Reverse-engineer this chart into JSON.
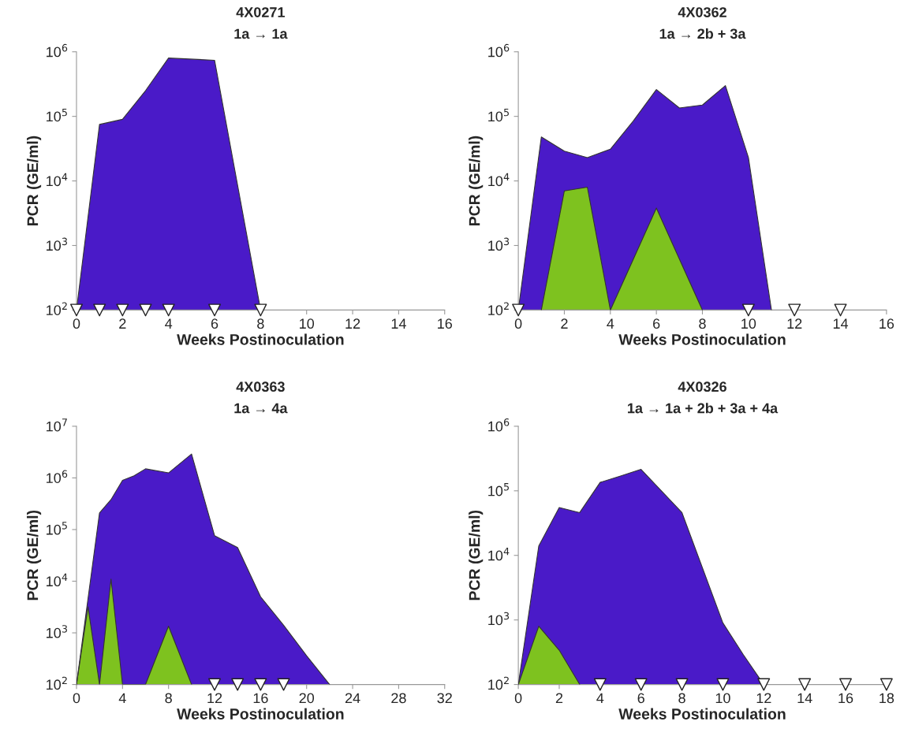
{
  "chart_data": [
    {
      "type": "area",
      "title": "4X0271",
      "subtitle": "1a → 1a",
      "xlabel": "Weeks Postinoculation",
      "ylabel": "PCR (GE/ml)",
      "log": "y",
      "xlim": [
        0,
        16
      ],
      "xticks": [
        0,
        2,
        4,
        6,
        8,
        10,
        12,
        14,
        16
      ],
      "ylim": [
        100,
        1000000
      ],
      "yticks": [
        {
          "value": 100,
          "label": "10$^{2}$"
        },
        {
          "value": 1000,
          "label": "10$^{3}$"
        },
        {
          "value": 10000,
          "label": "10$^{4}$"
        },
        {
          "value": 100000,
          "label": "10$^{5}$"
        },
        {
          "value": 1000000,
          "label": "10$^{6}$"
        }
      ],
      "series": [
        {
          "color": "#4a1ac8",
          "x": [
            0,
            1,
            2,
            3,
            4,
            6,
            8
          ],
          "values": [
            100,
            75000,
            90000,
            250000,
            800000,
            740000,
            100
          ]
        },
        {
          "type": "scatter",
          "marker": "triangle",
          "color": "#ffffff",
          "x": [
            0,
            1,
            2,
            3,
            4,
            6,
            8
          ],
          "values": [
            100,
            100,
            100,
            100,
            100,
            100,
            100
          ]
        }
      ]
    },
    {
      "type": "area",
      "title": "4X0362",
      "subtitle": "1a → 2b + 3a",
      "xlabel": "Weeks Postinoculation",
      "ylabel": "PCR (GE/ml)",
      "log": "y",
      "xlim": [
        0,
        16
      ],
      "xticks": [
        0,
        2,
        4,
        6,
        8,
        10,
        12,
        14,
        16
      ],
      "ylim": [
        100,
        1000000
      ],
      "yticks": [
        {
          "value": 100,
          "label": "10$^{2}$"
        },
        {
          "value": 1000,
          "label": "10$^{3}$"
        },
        {
          "value": 10000,
          "label": "10$^{4}$"
        },
        {
          "value": 100000,
          "label": "10$^{5}$"
        },
        {
          "value": 1000000,
          "label": "10$^{6}$"
        }
      ],
      "series": [
        {
          "color": "#4a1ac8",
          "x": [
            0,
            1,
            2,
            3,
            4,
            5,
            6,
            7,
            8,
            9,
            10,
            11
          ],
          "values": [
            100,
            48000,
            29000,
            23000,
            31000,
            85000,
            260000,
            135000,
            150000,
            300000,
            23000,
            100
          ]
        },
        {
          "color": "#7ec21f",
          "x": [
            1,
            2,
            3,
            4,
            6,
            8
          ],
          "values": [
            100,
            7000,
            8000,
            100,
            3800,
            100
          ]
        },
        {
          "type": "scatter",
          "marker": "triangle",
          "color": "#ffffff",
          "x": [
            0,
            10,
            12,
            14
          ],
          "values": [
            100,
            100,
            100,
            100
          ]
        }
      ]
    },
    {
      "type": "area",
      "title": "4X0363",
      "subtitle": "1a → 4a",
      "xlabel": "Weeks Postinoculation",
      "ylabel": "PCR (GE/ml)",
      "log": "y",
      "xlim": [
        0,
        32
      ],
      "xticks": [
        0,
        4,
        8,
        12,
        16,
        20,
        24,
        28,
        32
      ],
      "ylim": [
        100,
        10000000
      ],
      "yticks": [
        {
          "value": 100,
          "label": "10$^{2}$"
        },
        {
          "value": 1000,
          "label": "10$^{3}$"
        },
        {
          "value": 10000,
          "label": "10$^{4}$"
        },
        {
          "value": 100000,
          "label": "10$^{5}$"
        },
        {
          "value": 1000000,
          "label": "10$^{6}$"
        },
        {
          "value": 10000000,
          "label": "10$^{7}$"
        }
      ],
      "series": [
        {
          "color": "#4a1ac8",
          "x": [
            0,
            2,
            3,
            4,
            5,
            6,
            8,
            10,
            12,
            14,
            16,
            18,
            20,
            22
          ],
          "values": [
            100,
            210000,
            380000,
            900000,
            1100000,
            1500000,
            1250000,
            2900000,
            76000,
            45000,
            5000,
            1400,
            360,
            100
          ]
        },
        {
          "color": "#7ec21f",
          "x": [
            0,
            1,
            2,
            3,
            4,
            6,
            8,
            10
          ],
          "values": [
            100,
            3200,
            100,
            11000,
            100,
            100,
            1350,
            100
          ]
        },
        {
          "type": "scatter",
          "marker": "triangle",
          "color": "#ffffff",
          "x": [
            12,
            14,
            16,
            18
          ],
          "values": [
            100,
            100,
            100,
            100
          ]
        }
      ]
    },
    {
      "type": "area",
      "title": "4X0326",
      "subtitle": "1a → 1a + 2b + 3a + 4a",
      "xlabel": "Weeks Postinoculation",
      "ylabel": "PCR (GE/ml)",
      "log": "y",
      "xlim": [
        0,
        18
      ],
      "xticks": [
        0,
        2,
        4,
        6,
        8,
        10,
        12,
        14,
        16,
        18
      ],
      "ylim": [
        100,
        1000000
      ],
      "yticks": [
        {
          "value": 100,
          "label": "10$^{2}$"
        },
        {
          "value": 1000,
          "label": "10$^{3}$"
        },
        {
          "value": 10000,
          "label": "10$^{4}$"
        },
        {
          "value": 100000,
          "label": "10$^{5}$"
        },
        {
          "value": 1000000,
          "label": "10$^{6}$"
        }
      ],
      "series": [
        {
          "color": "#4a1ac8",
          "x": [
            0,
            1,
            2,
            3,
            4,
            5,
            6,
            8,
            10,
            11,
            12
          ],
          "values": [
            100,
            14000,
            55000,
            46000,
            135000,
            170000,
            215000,
            46000,
            900,
            290,
            100
          ]
        },
        {
          "color": "#7ec21f",
          "x": [
            0,
            1,
            2,
            3
          ],
          "values": [
            100,
            800,
            340,
            100
          ]
        },
        {
          "type": "scatter",
          "marker": "triangle",
          "color": "#ffffff",
          "x": [
            4,
            6,
            8,
            10,
            12,
            14,
            16,
            18
          ],
          "values": [
            100,
            100,
            100,
            100,
            100,
            100,
            100,
            100
          ]
        }
      ]
    }
  ]
}
